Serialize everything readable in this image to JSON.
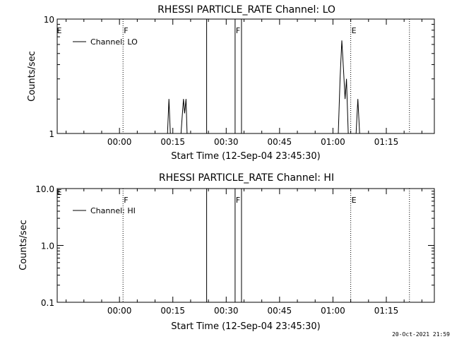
{
  "footer": {
    "timestamp": "20-Oct-2021 21:59"
  },
  "chart_data": [
    {
      "type": "line",
      "title": "RHESSI PARTICLE_RATE Channel: LO",
      "xlabel": "Start Time (12-Sep-04 23:45:30)",
      "ylabel": "Counts/sec",
      "x_units": "minutes after 2004-09-12 23:45:30",
      "xlim": [
        -3.0,
        103.0
      ],
      "x_ticks": [
        {
          "x": 14.5,
          "label": "00:00"
        },
        {
          "x": 29.5,
          "label": "00:15"
        },
        {
          "x": 44.5,
          "label": "00:30"
        },
        {
          "x": 59.5,
          "label": "00:45"
        },
        {
          "x": 74.5,
          "label": "01:00"
        },
        {
          "x": 89.5,
          "label": "01:15"
        }
      ],
      "y_scale": "log",
      "ylim": [
        1,
        10
      ],
      "y_ticks": [
        {
          "y": 1,
          "label": "1"
        },
        {
          "y": 10,
          "label": "10"
        }
      ],
      "legend": {
        "position": "top-left",
        "entries": [
          "Channel: LO"
        ]
      },
      "series": [
        {
          "name": "Channel: LO",
          "segments": [
            [
              [
                28.0,
                1
              ],
              [
                28.4,
                2.0
              ],
              [
                28.8,
                1
              ]
            ],
            [
              [
                31.8,
                1
              ],
              [
                32.2,
                1.5
              ],
              [
                32.5,
                2.0
              ],
              [
                32.8,
                1.5
              ],
              [
                33.2,
                2.0
              ],
              [
                33.5,
                1
              ]
            ],
            [
              [
                76.0,
                1
              ],
              [
                76.5,
                3.0
              ],
              [
                77.0,
                6.5
              ],
              [
                77.5,
                3.5
              ],
              [
                77.9,
                2.0
              ],
              [
                78.3,
                3.0
              ],
              [
                78.8,
                1
              ]
            ],
            [
              [
                81.0,
                1
              ],
              [
                81.5,
                2.0
              ],
              [
                82.0,
                1
              ]
            ]
          ]
        }
      ],
      "markers": [
        {
          "x": 15.5,
          "style": "dotted",
          "label": "F"
        },
        {
          "x": 39.0,
          "style": "solid",
          "label": ""
        },
        {
          "x": 47.0,
          "style": "solid",
          "label": "F"
        },
        {
          "x": 48.8,
          "style": "solid",
          "label": ""
        },
        {
          "x": 79.5,
          "style": "dotted",
          "label": "E"
        },
        {
          "x": 96.0,
          "style": "dotted",
          "label": ""
        }
      ],
      "edge_label": "E"
    },
    {
      "type": "line",
      "title": "RHESSI PARTICLE_RATE Channel: HI",
      "xlabel": "Start Time (12-Sep-04 23:45:30)",
      "ylabel": "Counts/sec",
      "x_units": "minutes after 2004-09-12 23:45:30",
      "xlim": [
        -3.0,
        103.0
      ],
      "x_ticks": [
        {
          "x": 14.5,
          "label": "00:00"
        },
        {
          "x": 29.5,
          "label": "00:15"
        },
        {
          "x": 44.5,
          "label": "00:30"
        },
        {
          "x": 59.5,
          "label": "00:45"
        },
        {
          "x": 74.5,
          "label": "01:00"
        },
        {
          "x": 89.5,
          "label": "01:15"
        }
      ],
      "y_scale": "log",
      "ylim": [
        0.1,
        10
      ],
      "y_ticks": [
        {
          "y": 0.1,
          "label": "0.1"
        },
        {
          "y": 1.0,
          "label": "1.0"
        },
        {
          "y": 10.0,
          "label": "10.0"
        }
      ],
      "legend": {
        "position": "top-left",
        "entries": [
          "Channel: HI"
        ]
      },
      "series": [
        {
          "name": "Channel: HI",
          "segments": []
        }
      ],
      "markers": [
        {
          "x": 15.5,
          "style": "dotted",
          "label": "F"
        },
        {
          "x": 39.0,
          "style": "solid",
          "label": ""
        },
        {
          "x": 47.0,
          "style": "solid",
          "label": "F"
        },
        {
          "x": 48.8,
          "style": "solid",
          "label": ""
        },
        {
          "x": 79.5,
          "style": "dotted",
          "label": "E"
        },
        {
          "x": 96.0,
          "style": "dotted",
          "label": ""
        }
      ],
      "edge_label": "E"
    }
  ]
}
